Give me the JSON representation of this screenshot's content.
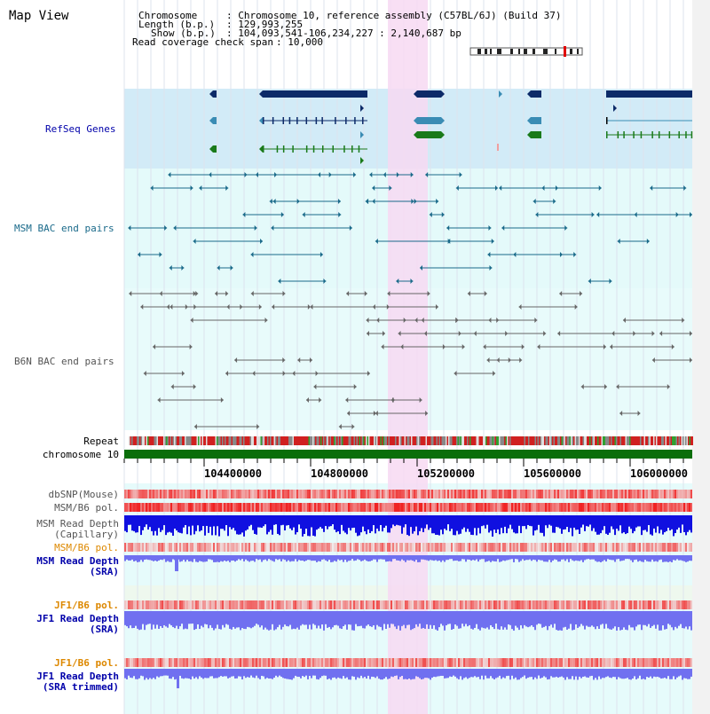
{
  "window": {
    "title": "Map View"
  },
  "info": {
    "chromosome_label": "Chromosome",
    "chromosome_value": ": Chromosome 10, reference assembly (C57BL/6J) (Build 37)",
    "length_label": "Length (b.p.)",
    "length_value": ": 129,993,255",
    "show_label": "Show (b.p.)",
    "show_value": ": 104,093,541-106,234,227 : 2,140,687 bp",
    "coverage_label": "Read coverage check span",
    "coverage_value": ": 10,000"
  },
  "tracks": {
    "refseq": "RefSeq Genes",
    "msm_bac": "MSM BAC end pairs",
    "b6n_bac": "B6N BAC end pairs",
    "repeat": "Repeat",
    "chromosome": "chromosome 10",
    "dbsnp": "dbSNP(Mouse)",
    "msm_b6_pol_1": "MSM/B6 pol.",
    "msm_depth_cap_1": "MSM Read Depth",
    "msm_depth_cap_2": "(Capillary)",
    "msm_b6_pol_2": "MSM/B6 pol.",
    "msm_depth_sra_1": "MSM Read Depth",
    "msm_depth_sra_2": "(SRA)",
    "jf1_b6_pol_1": "JF1/B6 pol.",
    "jf1_depth_sra_1": "JF1 Read Depth",
    "jf1_depth_sra_2": "(SRA)",
    "jf1_b6_pol_2": "JF1/B6 pol.",
    "jf1_depth_trim_1": "JF1 Read Depth",
    "jf1_depth_trim_2": "(SRA trimmed)"
  },
  "axis": {
    "ticks": [
      "104400000",
      "104800000",
      "105200000",
      "105600000",
      "106000000"
    ]
  },
  "colors": {
    "refseq_bg": "#d2ebf7",
    "bac_bg": "#e4fafa",
    "highlight": "#f7d9f2",
    "gene_dark": "#0c2a68",
    "gene_blue": "#3a8cb4",
    "gene_green": "#1a7a1a",
    "msm_line": "#1a6a8a",
    "b6n_line": "#666666",
    "chrom_bar": "#0a6e0a",
    "snp_red": "#e03030",
    "depth_blue": "#1010e0",
    "depth_light": "#7070f0",
    "label_blue": "#0000aa",
    "label_orange": "#dd8800",
    "label_teal": "#1a6a8a"
  }
}
